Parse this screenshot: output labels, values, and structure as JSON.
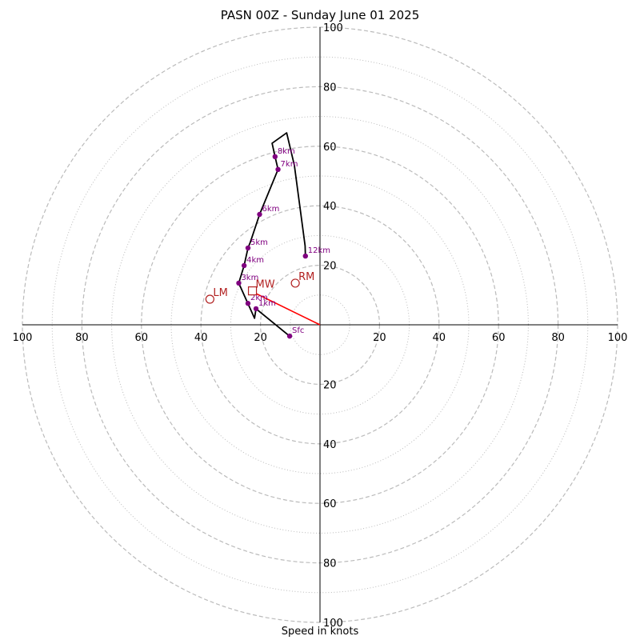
{
  "chart_data": {
    "type": "hodograph",
    "title": "PASN 00Z - Sunday June 01 2025",
    "xlabel": "Speed in knots",
    "max_speed": 100,
    "ring_major": [
      20,
      40,
      60,
      80,
      100
    ],
    "ring_minor": [
      10,
      30,
      50,
      70,
      90
    ],
    "tick_labels": [
      "20",
      "40",
      "60",
      "80",
      "100"
    ],
    "grid": true,
    "colors": {
      "trace": "#000000",
      "levels": "#800080",
      "motion": "#b22222",
      "shear_vector": "#ff0000",
      "grid": "#bbbbbb"
    },
    "trace": [
      {
        "u": -10.2,
        "v": -3.8
      },
      {
        "u": -21.5,
        "v": 5.4
      },
      {
        "u": -22,
        "v": 2.2
      },
      {
        "u": -27.3,
        "v": 14
      },
      {
        "u": -25.5,
        "v": 19.9
      },
      {
        "u": -24.2,
        "v": 25.8
      },
      {
        "u": -23.4,
        "v": 27.8
      },
      {
        "u": -20.3,
        "v": 37.1
      },
      {
        "u": -14.1,
        "v": 52.2
      },
      {
        "u": -15.1,
        "v": 56.5
      },
      {
        "u": -16.1,
        "v": 61
      },
      {
        "u": -11.2,
        "v": 64.5
      },
      {
        "u": -8.6,
        "v": 53.5
      },
      {
        "u": -5,
        "v": 26.5
      },
      {
        "u": -4.9,
        "v": 23.1
      }
    ],
    "levels": [
      {
        "label": "Sfc",
        "u": -10.2,
        "v": -3.8
      },
      {
        "label": "1km",
        "u": -21.5,
        "v": 5.4
      },
      {
        "label": "2km",
        "u": -24.2,
        "v": 7.2
      },
      {
        "label": "3km",
        "u": -27.3,
        "v": 14
      },
      {
        "label": "4km",
        "u": -25.5,
        "v": 19.9
      },
      {
        "label": "5km",
        "u": -24.2,
        "v": 25.8
      },
      {
        "label": "6km",
        "u": -20.3,
        "v": 37.1
      },
      {
        "label": "7km",
        "u": -14.1,
        "v": 52.2
      },
      {
        "label": "8km",
        "u": -15.1,
        "v": 56.5
      },
      {
        "label": "12km",
        "u": -4.9,
        "v": 23.1
      }
    ],
    "storm_motion": [
      {
        "label": "RM",
        "marker": "circle",
        "u": -8.3,
        "v": 14
      },
      {
        "label": "LM",
        "marker": "circle",
        "u": -37,
        "v": 8.6
      },
      {
        "label": "MW",
        "marker": "square",
        "u": -22.7,
        "v": 11.4
      }
    ],
    "shear_vector": {
      "from": {
        "u": 0,
        "v": 0
      },
      "to": {
        "u": -21.5,
        "v": 10.5
      }
    }
  }
}
